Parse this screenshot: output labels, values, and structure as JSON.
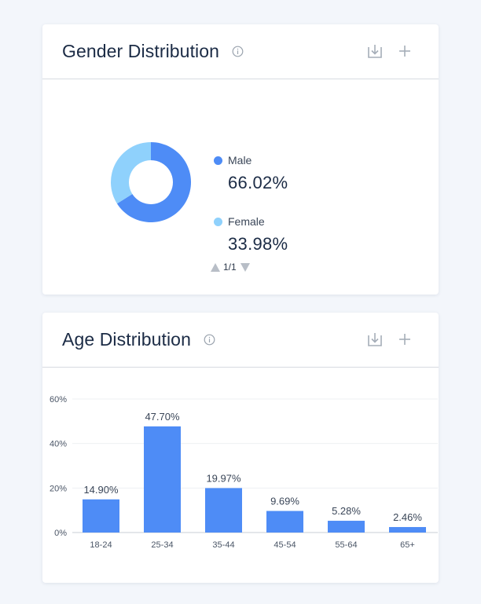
{
  "gender": {
    "title": "Gender Distribution",
    "legend": [
      {
        "label": "Male",
        "value": "66.02%",
        "color": "#4e8cf6"
      },
      {
        "label": "Female",
        "value": "33.98%",
        "color": "#8fd1fc"
      }
    ],
    "pager": "1/1"
  },
  "age": {
    "title": "Age Distribution"
  },
  "icons": {
    "info": "info-icon",
    "download": "download-icon",
    "add": "plus-icon"
  },
  "chart_data": [
    {
      "type": "pie",
      "labels": [
        "Male",
        "Female"
      ],
      "values": [
        66.02,
        33.98
      ],
      "colors": [
        "#4e8cf6",
        "#8fd1fc"
      ],
      "donut": true,
      "title": "Gender Distribution"
    },
    {
      "type": "bar",
      "title": "Age Distribution",
      "categories": [
        "18-24",
        "25-34",
        "35-44",
        "45-54",
        "55-64",
        "65+"
      ],
      "values": [
        14.9,
        47.7,
        19.97,
        9.69,
        5.28,
        2.46
      ],
      "data_labels": [
        "14.90%",
        "47.70%",
        "19.97%",
        "9.69%",
        "5.28%",
        "2.46%"
      ],
      "yticks": [
        "0%",
        "20%",
        "40%",
        "60%"
      ],
      "ylim": [
        0,
        60
      ],
      "color": "#4e8cf6",
      "grid": true,
      "xlabel": "",
      "ylabel": ""
    }
  ]
}
